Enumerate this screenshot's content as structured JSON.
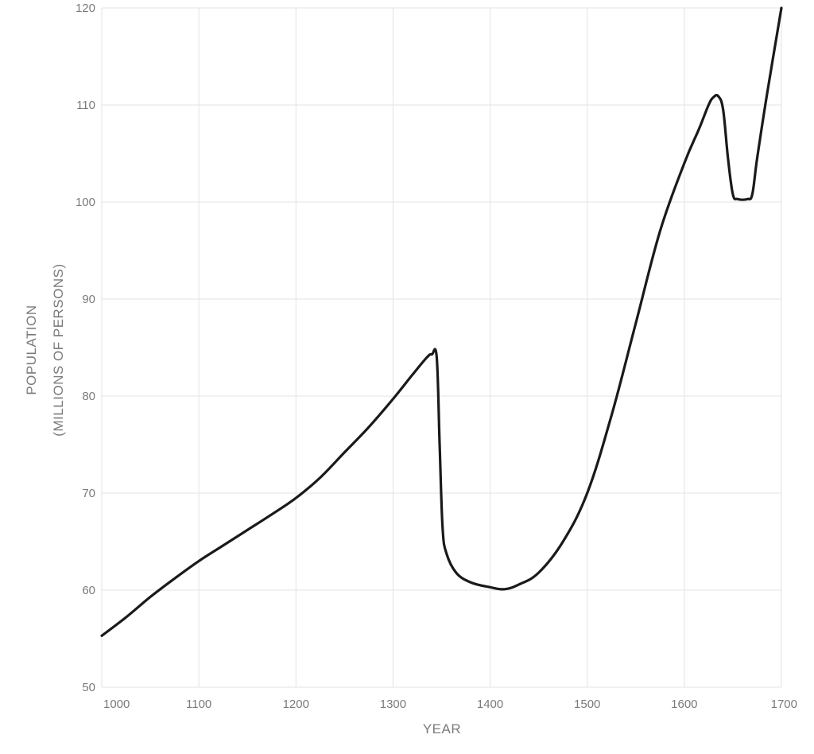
{
  "chart_data": {
    "type": "line",
    "xlabel": "YEAR",
    "ylabel": "POPULATION",
    "ylabel_line2": "(MILLIONS OF PERSONS)",
    "xlim": [
      1000,
      1700
    ],
    "ylim": [
      50,
      120
    ],
    "xticks": [
      1000,
      1100,
      1200,
      1300,
      1400,
      1500,
      1600,
      1700
    ],
    "yticks": [
      50,
      60,
      70,
      80,
      90,
      100,
      110,
      120
    ],
    "grid": true,
    "series": [
      {
        "x": [
          1000,
          1025,
          1050,
          1075,
          1100,
          1125,
          1150,
          1175,
          1200,
          1225,
          1250,
          1275,
          1300,
          1320,
          1335,
          1340,
          1345,
          1348,
          1351,
          1355,
          1365,
          1380,
          1400,
          1415,
          1430,
          1450,
          1475,
          1500,
          1525,
          1550,
          1575,
          1600,
          1615,
          1625,
          1630,
          1635,
          1640,
          1645,
          1650,
          1655,
          1665,
          1670,
          1675,
          1685,
          1700
        ],
        "y": [
          55.3,
          57.2,
          59.3,
          61.2,
          63.0,
          64.6,
          66.2,
          67.8,
          69.5,
          71.6,
          74.2,
          76.8,
          79.7,
          82.2,
          84.0,
          84.3,
          84.0,
          75.0,
          66.5,
          63.8,
          61.8,
          60.8,
          60.3,
          60.1,
          60.6,
          61.8,
          65.0,
          70.0,
          78.0,
          87.5,
          97.0,
          104.0,
          107.5,
          110.0,
          110.8,
          110.9,
          109.5,
          104.5,
          100.8,
          100.3,
          100.3,
          100.8,
          104.5,
          111.0,
          120.0
        ]
      }
    ]
  }
}
